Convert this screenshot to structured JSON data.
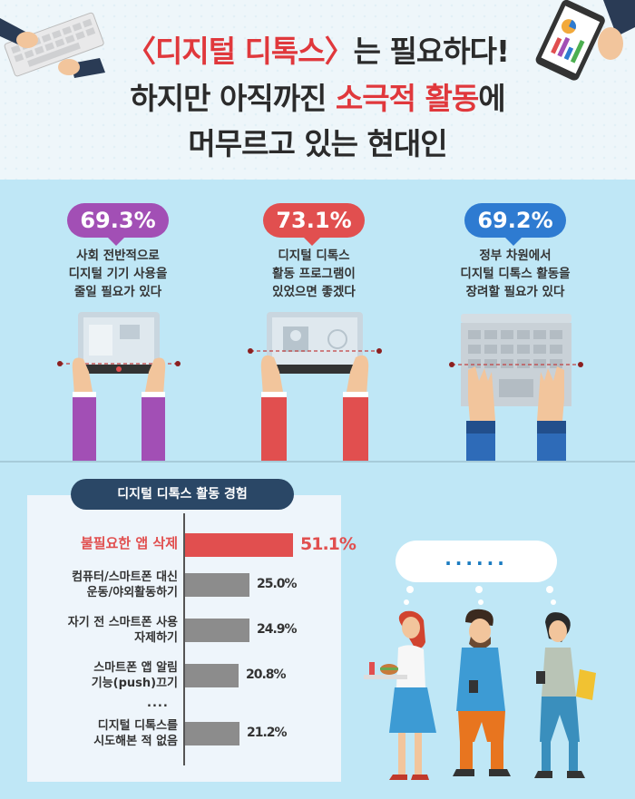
{
  "title": {
    "line1": "〈디지털 디톡스〉는 필요하다!",
    "line2_part1": "하지만 아직까진 ",
    "line2_highlight": "소극적 활동",
    "line2_part2": "에",
    "line3": "머무르고 있는 현대인"
  },
  "stats": [
    {
      "value": "69.3%",
      "color": "#a24fb5",
      "desc": [
        "사회 전반적으로",
        "디지털 기기 사용을",
        "줄일 필요가 있다"
      ]
    },
    {
      "value": "73.1%",
      "color": "#e14f4f",
      "desc": [
        "디지털 디톡스",
        "활동 프로그램이",
        "있었으면 좋겠다"
      ]
    },
    {
      "value": "69.2%",
      "color": "#2e7bd1",
      "desc": [
        "정부 차원에서",
        "디지털 디톡스 활동을",
        "장려할 필요가 있다"
      ]
    }
  ],
  "section_title": "디지털 디톡스 활동 경험",
  "chart_data": {
    "type": "bar",
    "title": "디지털 디톡스 활동 경험",
    "categories": [
      "불필요한 앱 삭제",
      "컴퓨터/스마트폰 대신 운동/야외활동하기",
      "자기 전 스마트폰 사용 자제하기",
      "스마트폰 앱 알림 기능(push)끄기",
      "디지털 디톡스를 시도해본 적 없음"
    ],
    "values": [
      51.1,
      25.0,
      24.9,
      20.8,
      21.2
    ],
    "value_labels": [
      "51.1%",
      "25.0%",
      "24.9%",
      "20.8%",
      "21.2%"
    ],
    "highlight_color": "#e14f4f",
    "bar_color": "#8c8c8c"
  },
  "bar_labels": [
    [
      "불필요한 앱 삭제"
    ],
    [
      "컴퓨터/스마트폰 대신",
      "운동/야외활동하기"
    ],
    [
      "자기 전 스마트폰 사용",
      "자제하기"
    ],
    [
      "스마트폰 앱 알림",
      "기능(push)끄기"
    ],
    [
      "디지털 디톡스를",
      "시도해본 적 없음"
    ]
  ],
  "ellipsis": "....",
  "bubble_text": "......"
}
